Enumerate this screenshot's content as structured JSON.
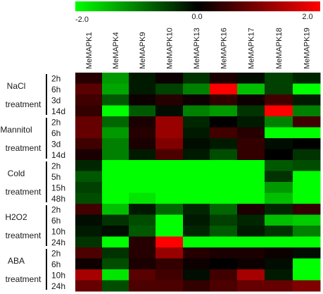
{
  "chart_data": {
    "type": "heatmap",
    "colorscale": {
      "min": -2.0,
      "mid": 0.0,
      "max": 2.0,
      "low_color": "#00ff00",
      "mid_color": "#000000",
      "high_color": "#ff0000",
      "tick_labels": [
        "-2.0",
        "0.0",
        "2.0"
      ]
    },
    "genes": [
      "MeMAPK1",
      "MeMAPK4",
      "MeMAPK9",
      "MeMAPK10",
      "MeMAPK13",
      "MeMAPK16",
      "MeMAPK17",
      "MeMAPK18",
      "MeMAPK19"
    ],
    "groups": [
      {
        "label_line1": "NaCl",
        "label_line2": "treatment",
        "times": [
          "2h",
          "6h",
          "3d",
          "14d"
        ]
      },
      {
        "label_line1": "Mannitol",
        "label_line2": "treatment",
        "times": [
          "2h",
          "6h",
          "3d",
          "14d"
        ]
      },
      {
        "label_line1": "Cold",
        "label_line2": "treatment",
        "times": [
          "2h",
          "5h",
          "15h",
          "48h"
        ]
      },
      {
        "label_line1": "H2O2",
        "label_line2": "treatment",
        "times": [
          "2h",
          "6h",
          "10h",
          "24h"
        ]
      },
      {
        "label_line1": "ABA",
        "label_line2": "treatment",
        "times": [
          "2h",
          "6h",
          "10h",
          "24h"
        ]
      }
    ],
    "values": [
      [
        0.3,
        -1.2,
        -0.2,
        0.1,
        -0.4,
        0.2,
        -0.1,
        -0.5,
        -0.3
      ],
      [
        0.7,
        -1.3,
        -0.2,
        -0.5,
        -1.0,
        2.0,
        -1.5,
        -0.5,
        -2.0
      ],
      [
        0.5,
        -0.7,
        0.1,
        0.3,
        0.1,
        0.4,
        0.1,
        0.5,
        -0.2
      ],
      [
        0.4,
        -2.0,
        -0.7,
        -0.1,
        -1.0,
        -1.2,
        -0.4,
        2.0,
        -1.0
      ],
      [
        0.8,
        -0.8,
        0.2,
        1.2,
        -0.3,
        0.0,
        -0.2,
        -1.0,
        0.5
      ],
      [
        0.8,
        -1.2,
        0.3,
        1.2,
        -0.2,
        0.5,
        0.3,
        -2.0,
        -2.0
      ],
      [
        0.5,
        -1.0,
        0.2,
        1.0,
        -0.1,
        -0.2,
        0.4,
        -0.1,
        0.0
      ],
      [
        0.2,
        -1.0,
        -0.2,
        0.6,
        -0.2,
        -0.6,
        0.4,
        0.0,
        -0.4
      ],
      [
        -0.3,
        -2.0,
        -2.0,
        -2.0,
        -2.0,
        -2.0,
        -2.0,
        -0.7,
        -0.6
      ],
      [
        -0.7,
        -2.0,
        -2.0,
        -2.0,
        -2.0,
        -2.0,
        -2.0,
        -0.4,
        -2.0
      ],
      [
        -0.5,
        -2.0,
        -2.0,
        -2.0,
        -2.0,
        -2.0,
        -2.0,
        -1.2,
        -2.0
      ],
      [
        -0.6,
        -2.0,
        -1.8,
        -2.0,
        -2.0,
        -2.0,
        -2.0,
        -1.5,
        -2.0
      ],
      [
        0.5,
        -1.5,
        -0.2,
        -0.8,
        -0.3,
        -0.8,
        0.2,
        -0.3,
        0.4
      ],
      [
        -0.1,
        -0.4,
        -0.6,
        -2.0,
        -0.2,
        -0.5,
        -0.3,
        -1.5,
        -1.6
      ],
      [
        -0.2,
        -0.1,
        -0.7,
        -2.0,
        -0.3,
        -0.7,
        -0.2,
        -0.4,
        -1.0
      ],
      [
        -0.4,
        -2.0,
        0.3,
        2.0,
        -2.0,
        -2.0,
        -2.0,
        -2.0,
        -2.0
      ],
      [
        0.6,
        -0.4,
        0.3,
        1.2,
        0.3,
        0.2,
        0.2,
        0.1,
        -0.1
      ],
      [
        0.1,
        -0.6,
        0.2,
        0.4,
        0.1,
        0.0,
        0.1,
        -0.1,
        -2.0
      ],
      [
        1.3,
        -1.8,
        0.7,
        0.5,
        -0.1,
        0.5,
        1.3,
        -0.2,
        -2.0
      ],
      [
        0.8,
        -0.6,
        0.6,
        0.6,
        0.4,
        0.6,
        0.8,
        0.8,
        1.0
      ]
    ]
  }
}
